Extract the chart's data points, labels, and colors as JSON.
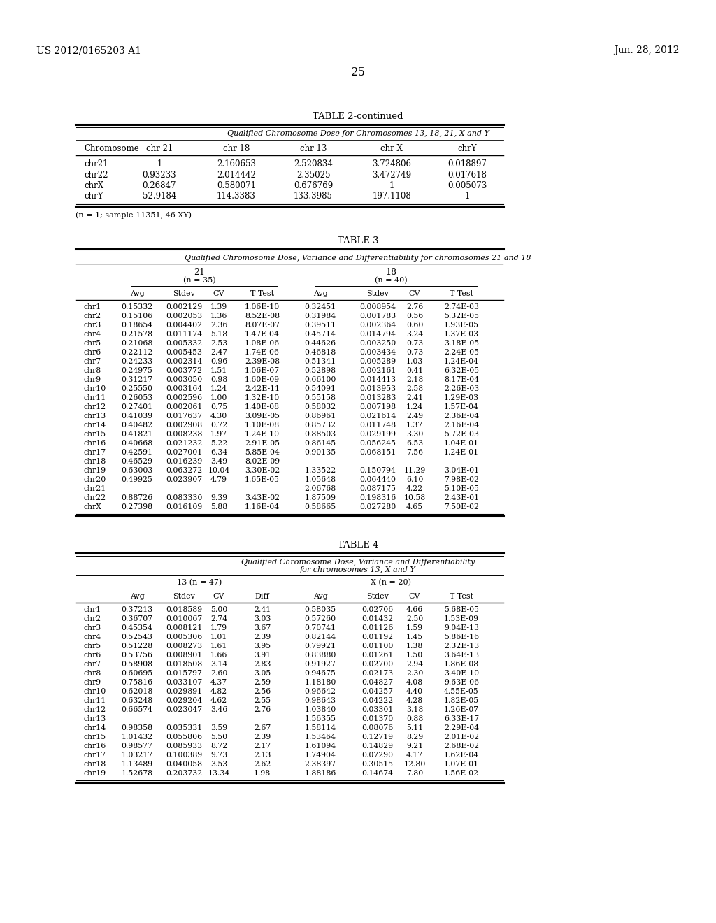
{
  "header_left": "US 2012/0165203 A1",
  "header_right": "Jun. 28, 2012",
  "page_number": "25",
  "table2_title": "TABLE 2-continued",
  "table2_subtitle": "Qualified Chromosome Dose for Chromosomes 13, 18, 21, X and Y",
  "table2_columns": [
    "Chromosome",
    "chr 21",
    "chr 18",
    "chr 13",
    "chr X",
    "chrY"
  ],
  "table2_data": [
    [
      "chr21",
      "1",
      "2.160653",
      "2.520834",
      "3.724806",
      "0.018897"
    ],
    [
      "chr22",
      "0.93233",
      "2.014442",
      "2.35025",
      "3.472749",
      "0.017618"
    ],
    [
      "chrX",
      "0.26847",
      "0.580071",
      "0.676769",
      "1",
      "0.005073"
    ],
    [
      "chrY",
      "52.9184",
      "114.3383",
      "133.3985",
      "197.1108",
      "1"
    ]
  ],
  "table2_footnote": "(n = 1; sample 11351, 46 XY)",
  "table3_title": "TABLE 3",
  "table3_subtitle": "Qualified Chromosome Dose, Variance and Differentiability for chromosomes 21 and 18",
  "table3_col21": "21",
  "table3_col21_n": "(n = 35)",
  "table3_col18": "18",
  "table3_col18_n": "(n = 40)",
  "table3_subheaders": [
    "Avg",
    "Stdev",
    "CV",
    "T Test",
    "Avg",
    "Stdev",
    "CV",
    "T Test"
  ],
  "table3_data": [
    [
      "chr1",
      "0.15332",
      "0.002129",
      "1.39",
      "1.06E-10",
      "0.32451",
      "0.008954",
      "2.76",
      "2.74E-03"
    ],
    [
      "chr2",
      "0.15106",
      "0.002053",
      "1.36",
      "8.52E-08",
      "0.31984",
      "0.001783",
      "0.56",
      "5.32E-05"
    ],
    [
      "chr3",
      "0.18654",
      "0.004402",
      "2.36",
      "8.07E-07",
      "0.39511",
      "0.002364",
      "0.60",
      "1.93E-05"
    ],
    [
      "chr4",
      "0.21578",
      "0.011174",
      "5.18",
      "1.47E-04",
      "0.45714",
      "0.014794",
      "3.24",
      "1.37E-03"
    ],
    [
      "chr5",
      "0.21068",
      "0.005332",
      "2.53",
      "1.08E-06",
      "0.44626",
      "0.003250",
      "0.73",
      "3.18E-05"
    ],
    [
      "chr6",
      "0.22112",
      "0.005453",
      "2.47",
      "1.74E-06",
      "0.46818",
      "0.003434",
      "0.73",
      "2.24E-05"
    ],
    [
      "chr7",
      "0.24233",
      "0.002314",
      "0.96",
      "2.39E-08",
      "0.51341",
      "0.005289",
      "1.03",
      "1.24E-04"
    ],
    [
      "chr8",
      "0.24975",
      "0.003772",
      "1.51",
      "1.06E-07",
      "0.52898",
      "0.002161",
      "0.41",
      "6.32E-05"
    ],
    [
      "chr9",
      "0.31217",
      "0.003050",
      "0.98",
      "1.60E-09",
      "0.66100",
      "0.014413",
      "2.18",
      "8.17E-04"
    ],
    [
      "chr10",
      "0.25550",
      "0.003164",
      "1.24",
      "2.42E-11",
      "0.54091",
      "0.013953",
      "2.58",
      "2.26E-03"
    ],
    [
      "chr11",
      "0.26053",
      "0.002596",
      "1.00",
      "1.32E-10",
      "0.55158",
      "0.013283",
      "2.41",
      "1.29E-03"
    ],
    [
      "chr12",
      "0.27401",
      "0.002061",
      "0.75",
      "1.40E-08",
      "0.58032",
      "0.007198",
      "1.24",
      "1.57E-04"
    ],
    [
      "chr13",
      "0.41039",
      "0.017637",
      "4.30",
      "3.09E-05",
      "0.86961",
      "0.021614",
      "2.49",
      "2.36E-04"
    ],
    [
      "chr14",
      "0.40482",
      "0.002908",
      "0.72",
      "1.10E-08",
      "0.85732",
      "0.011748",
      "1.37",
      "2.16E-04"
    ],
    [
      "chr15",
      "0.41821",
      "0.008238",
      "1.97",
      "1.24E-10",
      "0.88503",
      "0.029199",
      "3.30",
      "5.72E-03"
    ],
    [
      "chr16",
      "0.40668",
      "0.021232",
      "5.22",
      "2.91E-05",
      "0.86145",
      "0.056245",
      "6.53",
      "1.04E-01"
    ],
    [
      "chr17",
      "0.42591",
      "0.027001",
      "6.34",
      "5.85E-04",
      "0.90135",
      "0.068151",
      "7.56",
      "1.24E-01"
    ],
    [
      "chr18",
      "0.46529",
      "0.016239",
      "3.49",
      "8.02E-09",
      "",
      "",
      "",
      ""
    ],
    [
      "chr19",
      "0.63003",
      "0.063272",
      "10.04",
      "3.30E-02",
      "1.33522",
      "0.150794",
      "11.29",
      "3.04E-01"
    ],
    [
      "chr20",
      "0.49925",
      "0.023907",
      "4.79",
      "1.65E-05",
      "1.05648",
      "0.064440",
      "6.10",
      "7.98E-02"
    ],
    [
      "chr21",
      "",
      "",
      "",
      "",
      "2.06768",
      "0.087175",
      "4.22",
      "5.10E-05"
    ],
    [
      "chr22",
      "0.88726",
      "0.083330",
      "9.39",
      "3.43E-02",
      "1.87509",
      "0.198316",
      "10.58",
      "2.43E-01"
    ],
    [
      "chrX",
      "0.27398",
      "0.016109",
      "5.88",
      "1.16E-04",
      "0.58665",
      "0.027280",
      "4.65",
      "7.50E-02"
    ]
  ],
  "table4_title": "TABLE 4",
  "table4_subtitle1": "Qualified Chromosome Dose, Variance and Differentiability",
  "table4_subtitle2": "for chromosomes 13, X and Y",
  "table4_col13": "13 (n = 47)",
  "table4_colX": "X (n = 20)",
  "table4_subheaders": [
    "Avg",
    "Stdev",
    "CV",
    "Diff",
    "Avg",
    "Stdev",
    "CV",
    "T Test"
  ],
  "table4_data": [
    [
      "chr1",
      "0.37213",
      "0.018589",
      "5.00",
      "2.41",
      "0.58035",
      "0.02706",
      "4.66",
      "5.68E-05"
    ],
    [
      "chr2",
      "0.36707",
      "0.010067",
      "2.74",
      "3.03",
      "0.57260",
      "0.01432",
      "2.50",
      "1.53E-09"
    ],
    [
      "chr3",
      "0.45354",
      "0.008121",
      "1.79",
      "3.67",
      "0.70741",
      "0.01126",
      "1.59",
      "9.04E-13"
    ],
    [
      "chr4",
      "0.52543",
      "0.005306",
      "1.01",
      "2.39",
      "0.82144",
      "0.01192",
      "1.45",
      "5.86E-16"
    ],
    [
      "chr5",
      "0.51228",
      "0.008273",
      "1.61",
      "3.95",
      "0.79921",
      "0.01100",
      "1.38",
      "2.32E-13"
    ],
    [
      "chr6",
      "0.53756",
      "0.008901",
      "1.66",
      "3.91",
      "0.83880",
      "0.01261",
      "1.50",
      "3.64E-13"
    ],
    [
      "chr7",
      "0.58908",
      "0.018508",
      "3.14",
      "2.83",
      "0.91927",
      "0.02700",
      "2.94",
      "1.86E-08"
    ],
    [
      "chr8",
      "0.60695",
      "0.015797",
      "2.60",
      "3.05",
      "0.94675",
      "0.02173",
      "2.30",
      "3.40E-10"
    ],
    [
      "chr9",
      "0.75816",
      "0.033107",
      "4.37",
      "2.59",
      "1.18180",
      "0.04827",
      "4.08",
      "9.63E-06"
    ],
    [
      "chr10",
      "0.62018",
      "0.029891",
      "4.82",
      "2.56",
      "0.96642",
      "0.04257",
      "4.40",
      "4.55E-05"
    ],
    [
      "chr11",
      "0.63248",
      "0.029204",
      "4.62",
      "2.55",
      "0.98643",
      "0.04222",
      "4.28",
      "1.82E-05"
    ],
    [
      "chr12",
      "0.66574",
      "0.023047",
      "3.46",
      "2.76",
      "1.03840",
      "0.03301",
      "3.18",
      "1.26E-07"
    ],
    [
      "chr13",
      "",
      "",
      "",
      "",
      "1.56355",
      "0.01370",
      "0.88",
      "6.33E-17"
    ],
    [
      "chr14",
      "0.98358",
      "0.035331",
      "3.59",
      "2.67",
      "1.58114",
      "0.08076",
      "5.11",
      "2.29E-04"
    ],
    [
      "chr15",
      "1.01432",
      "0.055806",
      "5.50",
      "2.39",
      "1.53464",
      "0.12719",
      "8.29",
      "2.01E-02"
    ],
    [
      "chr16",
      "0.98577",
      "0.085933",
      "8.72",
      "2.17",
      "1.61094",
      "0.14829",
      "9.21",
      "2.68E-02"
    ],
    [
      "chr17",
      "1.03217",
      "0.100389",
      "9.73",
      "2.13",
      "1.74904",
      "0.07290",
      "4.17",
      "1.62E-04"
    ],
    [
      "chr18",
      "1.13489",
      "0.040058",
      "3.53",
      "2.62",
      "2.38397",
      "0.30515",
      "12.80",
      "1.07E-01"
    ],
    [
      "chr19",
      "1.52678",
      "0.203732",
      "13.34",
      "1.98",
      "1.88186",
      "0.14674",
      "7.80",
      "1.56E-02"
    ]
  ]
}
